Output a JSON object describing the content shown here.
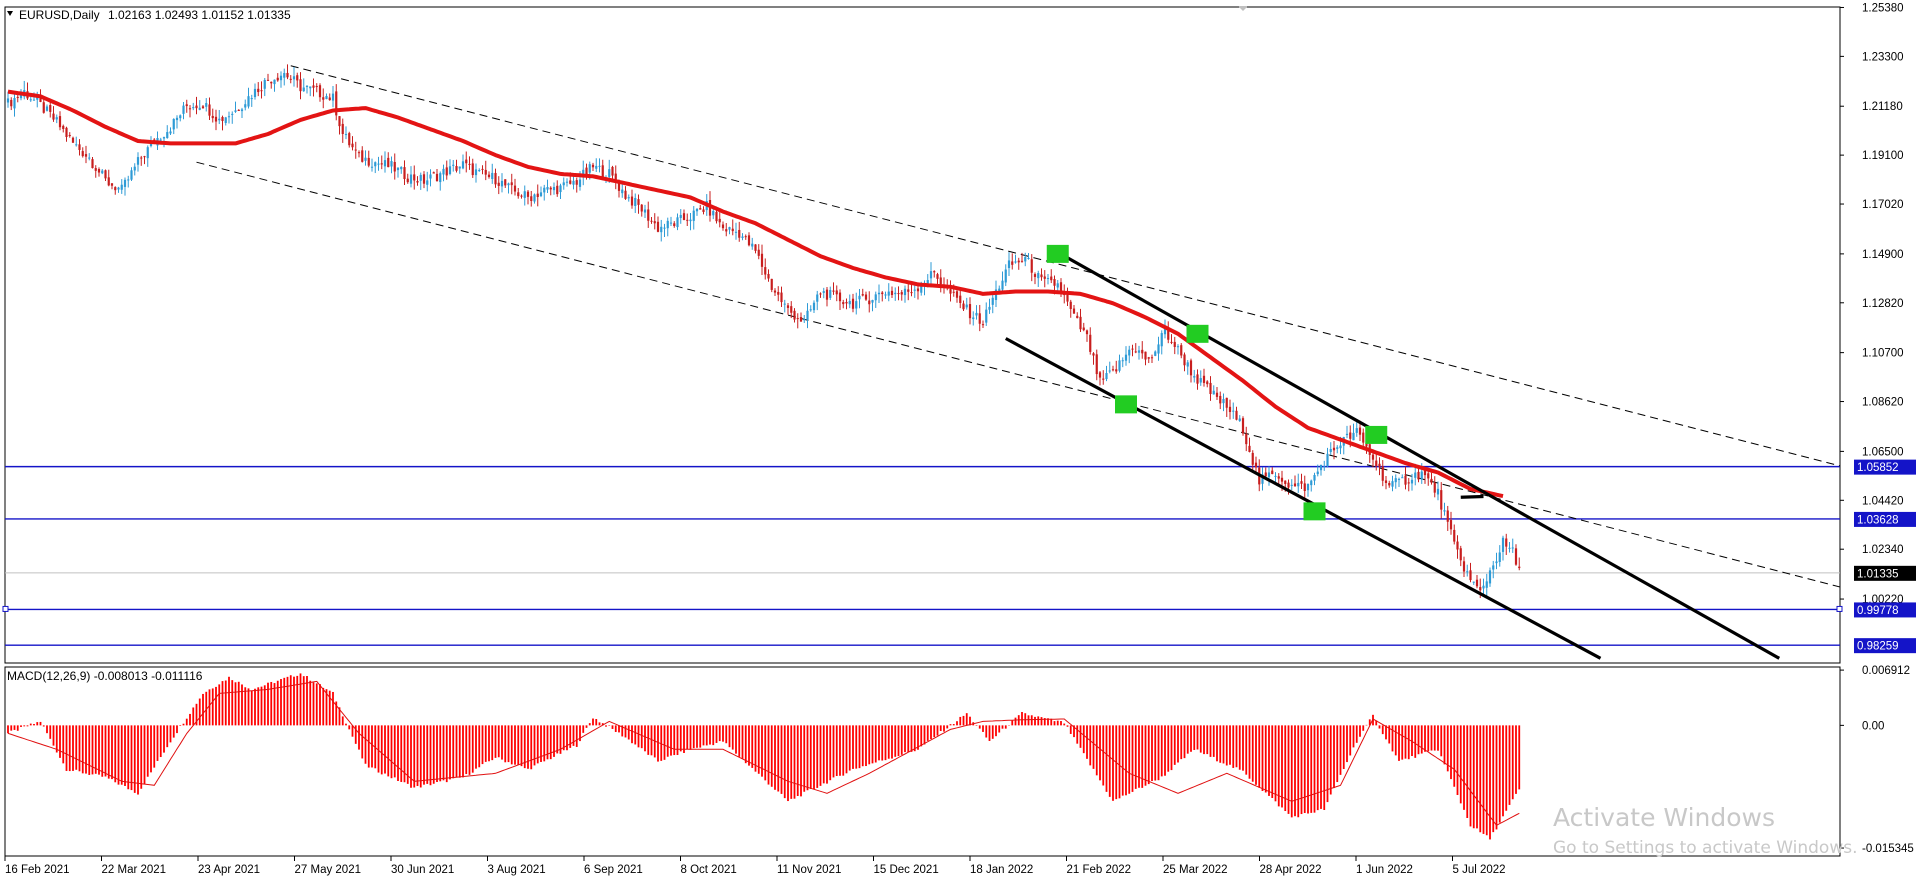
{
  "chart_data": [
    {
      "type": "candlestick",
      "symbol_header": "EURUSD,Daily",
      "ohlc_header": "1.02163 1.02493 1.01152 1.01335",
      "ylim": [
        0.975,
        1.254
      ],
      "y_ticks": [
        "1.25380",
        "1.23300",
        "1.21180",
        "1.19100",
        "1.17020",
        "1.14900",
        "1.12820",
        "1.10700",
        "1.08620",
        "1.06500",
        "1.04420",
        "1.02340",
        "1.00220"
      ],
      "x_ticks": [
        "16 Feb 2021",
        "22 Mar 2021",
        "23 Apr 2021",
        "27 May 2021",
        "30 Jun 2021",
        "3 Aug 2021",
        "6 Sep 2021",
        "8 Oct 2021",
        "11 Nov 2021",
        "15 Dec 2021",
        "18 Jan 2022",
        "21 Feb 2022",
        "25 Mar 2022",
        "28 Apr 2022",
        "1 Jun 2022",
        "5 Jul 2022"
      ],
      "current_price_label": "1.01335",
      "current_price": 1.01335,
      "close_path": [
        [
          0,
          1.213
        ],
        [
          5,
          1.218
        ],
        [
          10,
          1.212
        ],
        [
          15,
          1.205
        ],
        [
          20,
          1.196
        ],
        [
          25,
          1.19
        ],
        [
          30,
          1.18
        ],
        [
          35,
          1.176
        ],
        [
          40,
          1.188
        ],
        [
          45,
          1.197
        ],
        [
          50,
          1.203
        ],
        [
          55,
          1.212
        ],
        [
          60,
          1.213
        ],
        [
          65,
          1.206
        ],
        [
          70,
          1.21
        ],
        [
          75,
          1.217
        ],
        [
          80,
          1.223
        ],
        [
          85,
          1.226
        ],
        [
          90,
          1.22
        ],
        [
          95,
          1.218
        ],
        [
          100,
          1.215
        ],
        [
          103,
          1.2
        ],
        [
          108,
          1.19
        ],
        [
          113,
          1.188
        ],
        [
          118,
          1.186
        ],
        [
          123,
          1.182
        ],
        [
          128,
          1.18
        ],
        [
          133,
          1.183
        ],
        [
          140,
          1.187
        ],
        [
          145,
          1.183
        ],
        [
          150,
          1.181
        ],
        [
          155,
          1.176
        ],
        [
          160,
          1.173
        ],
        [
          165,
          1.176
        ],
        [
          170,
          1.177
        ],
        [
          175,
          1.18
        ],
        [
          180,
          1.186
        ],
        [
          185,
          1.183
        ],
        [
          190,
          1.174
        ],
        [
          195,
          1.168
        ],
        [
          200,
          1.16
        ],
        [
          205,
          1.162
        ],
        [
          210,
          1.165
        ],
        [
          215,
          1.169
        ],
        [
          220,
          1.16
        ],
        [
          225,
          1.158
        ],
        [
          230,
          1.15
        ],
        [
          235,
          1.135
        ],
        [
          240,
          1.125
        ],
        [
          245,
          1.12
        ],
        [
          250,
          1.133
        ],
        [
          255,
          1.13
        ],
        [
          260,
          1.128
        ],
        [
          265,
          1.13
        ],
        [
          270,
          1.133
        ],
        [
          275,
          1.132
        ],
        [
          280,
          1.135
        ],
        [
          285,
          1.141
        ],
        [
          290,
          1.132
        ],
        [
          295,
          1.125
        ],
        [
          300,
          1.12
        ],
        [
          303,
          1.13
        ],
        [
          308,
          1.144
        ],
        [
          313,
          1.147
        ],
        [
          318,
          1.137
        ],
        [
          323,
          1.136
        ],
        [
          328,
          1.122
        ],
        [
          332,
          1.113
        ],
        [
          336,
          1.094
        ],
        [
          341,
          1.1
        ],
        [
          346,
          1.11
        ],
        [
          351,
          1.103
        ],
        [
          356,
          1.116
        ],
        [
          360,
          1.108
        ],
        [
          365,
          1.097
        ],
        [
          370,
          1.09
        ],
        [
          375,
          1.084
        ],
        [
          380,
          1.075
        ],
        [
          385,
          1.052
        ],
        [
          390,
          1.056
        ],
        [
          395,
          1.05
        ],
        [
          400,
          1.05
        ],
        [
          405,
          1.061
        ],
        [
          410,
          1.069
        ],
        [
          415,
          1.073
        ],
        [
          420,
          1.062
        ],
        [
          425,
          1.05
        ],
        [
          430,
          1.053
        ],
        [
          435,
          1.056
        ],
        [
          440,
          1.047
        ],
        [
          445,
          1.025
        ],
        [
          450,
          1.01
        ],
        [
          453,
          1.005
        ],
        [
          457,
          1.017
        ],
        [
          460,
          1.026
        ],
        [
          463,
          1.022
        ],
        [
          465,
          1.0134
        ]
      ],
      "sma_path": [
        [
          0,
          1.218
        ],
        [
          10,
          1.216
        ],
        [
          20,
          1.21
        ],
        [
          30,
          1.203
        ],
        [
          40,
          1.197
        ],
        [
          50,
          1.196
        ],
        [
          60,
          1.196
        ],
        [
          70,
          1.196
        ],
        [
          80,
          1.2
        ],
        [
          90,
          1.206
        ],
        [
          100,
          1.21
        ],
        [
          110,
          1.211
        ],
        [
          120,
          1.207
        ],
        [
          130,
          1.202
        ],
        [
          140,
          1.197
        ],
        [
          150,
          1.191
        ],
        [
          160,
          1.186
        ],
        [
          170,
          1.183
        ],
        [
          180,
          1.182
        ],
        [
          190,
          1.179
        ],
        [
          200,
          1.176
        ],
        [
          210,
          1.173
        ],
        [
          220,
          1.167
        ],
        [
          230,
          1.162
        ],
        [
          240,
          1.155
        ],
        [
          250,
          1.148
        ],
        [
          260,
          1.143
        ],
        [
          270,
          1.139
        ],
        [
          280,
          1.136
        ],
        [
          290,
          1.135
        ],
        [
          300,
          1.132
        ],
        [
          310,
          1.133
        ],
        [
          320,
          1.133
        ],
        [
          330,
          1.132
        ],
        [
          340,
          1.128
        ],
        [
          350,
          1.122
        ],
        [
          360,
          1.115
        ],
        [
          370,
          1.105
        ],
        [
          380,
          1.095
        ],
        [
          390,
          1.084
        ],
        [
          400,
          1.075
        ],
        [
          410,
          1.07
        ],
        [
          420,
          1.065
        ],
        [
          430,
          1.06
        ],
        [
          440,
          1.056
        ],
        [
          450,
          1.049
        ],
        [
          460,
          1.046
        ]
      ],
      "dashed_lines": [
        [
          [
            87,
            1.229
          ],
          [
            580,
            1.053
          ]
        ],
        [
          [
            58,
            1.188
          ],
          [
            580,
            1.0015
          ]
        ]
      ],
      "channel_lines": [
        [
          [
            320,
            1.152
          ],
          [
            545,
            0.977
          ]
        ],
        [
          [
            307,
            1.113
          ],
          [
            490,
            0.977
          ]
        ],
        [
          [
            447,
            1.0455
          ],
          [
            454,
            1.0458
          ]
        ]
      ],
      "markers": [
        [
          323,
          1.149
        ],
        [
          344,
          1.085
        ],
        [
          366,
          1.115
        ],
        [
          402,
          1.0395
        ],
        [
          421,
          1.072
        ]
      ],
      "horizontal_levels": [
        {
          "value": 1.05852,
          "label": "1.05852"
        },
        {
          "value": 1.03628,
          "label": "1.03628"
        },
        {
          "value": 0.99778,
          "label": "0.99778"
        },
        {
          "value": 0.98259,
          "label": "0.98259"
        }
      ],
      "colors": {
        "up": "#2e9bd6",
        "down": "#c81e1e",
        "sma": "#e31414",
        "level": "#1414c8",
        "marker": "#22cc22",
        "channel": "#000000",
        "dashed": "#000000"
      }
    },
    {
      "type": "macd",
      "label": "MACD(12,26,9) -0.008013 -0.011116",
      "ylim": [
        -0.01634,
        0.0073
      ],
      "y_ticks": [
        "0.006912",
        "0.00",
        "-0.015345"
      ],
      "hist_path": [
        [
          0,
          -0.001
        ],
        [
          10,
          0.0005
        ],
        [
          18,
          -0.0055
        ],
        [
          30,
          -0.0065
        ],
        [
          40,
          -0.0085
        ],
        [
          50,
          -0.002
        ],
        [
          60,
          0.004
        ],
        [
          68,
          0.006
        ],
        [
          75,
          0.0045
        ],
        [
          90,
          0.0065
        ],
        [
          100,
          0.004
        ],
        [
          110,
          -0.005
        ],
        [
          125,
          -0.0078
        ],
        [
          140,
          -0.0065
        ],
        [
          150,
          -0.004
        ],
        [
          160,
          -0.0055
        ],
        [
          175,
          -0.0025
        ],
        [
          180,
          0.001
        ],
        [
          190,
          -0.0015
        ],
        [
          200,
          -0.0045
        ],
        [
          210,
          -0.003
        ],
        [
          220,
          -0.002
        ],
        [
          240,
          -0.0095
        ],
        [
          260,
          -0.0055
        ],
        [
          280,
          -0.003
        ],
        [
          295,
          0.0015
        ],
        [
          302,
          -0.002
        ],
        [
          312,
          0.0015
        ],
        [
          325,
          0.0003
        ],
        [
          340,
          -0.0095
        ],
        [
          355,
          -0.0065
        ],
        [
          365,
          -0.003
        ],
        [
          380,
          -0.0058
        ],
        [
          395,
          -0.0115
        ],
        [
          405,
          -0.0105
        ],
        [
          415,
          -0.002
        ],
        [
          420,
          0.0012
        ],
        [
          428,
          -0.0045
        ],
        [
          440,
          -0.003
        ],
        [
          450,
          -0.0125
        ],
        [
          456,
          -0.0142
        ],
        [
          465,
          -0.008
        ]
      ],
      "signal_path": [
        [
          0,
          -0.001
        ],
        [
          15,
          -0.003
        ],
        [
          35,
          -0.007
        ],
        [
          45,
          -0.0075
        ],
        [
          55,
          -0.001
        ],
        [
          65,
          0.004
        ],
        [
          80,
          0.0045
        ],
        [
          95,
          0.0055
        ],
        [
          108,
          -0.001
        ],
        [
          125,
          -0.007
        ],
        [
          150,
          -0.006
        ],
        [
          170,
          -0.003
        ],
        [
          185,
          0.0005
        ],
        [
          205,
          -0.003
        ],
        [
          220,
          -0.003
        ],
        [
          240,
          -0.007
        ],
        [
          252,
          -0.0085
        ],
        [
          265,
          -0.006
        ],
        [
          290,
          -0.0005
        ],
        [
          300,
          0.0005
        ],
        [
          312,
          0.0007
        ],
        [
          325,
          0.0008
        ],
        [
          345,
          -0.006
        ],
        [
          360,
          -0.0085
        ],
        [
          375,
          -0.006
        ],
        [
          395,
          -0.0095
        ],
        [
          410,
          -0.0075
        ],
        [
          420,
          0.0008
        ],
        [
          432,
          -0.002
        ],
        [
          445,
          -0.0055
        ],
        [
          458,
          -0.0125
        ],
        [
          465,
          -0.011
        ]
      ],
      "colors": {
        "hist": "#ff0000",
        "signal": "#e01010"
      }
    }
  ],
  "watermark": {
    "title": "Activate Windows",
    "subtitle": "Go to Settings to activate Windows."
  }
}
